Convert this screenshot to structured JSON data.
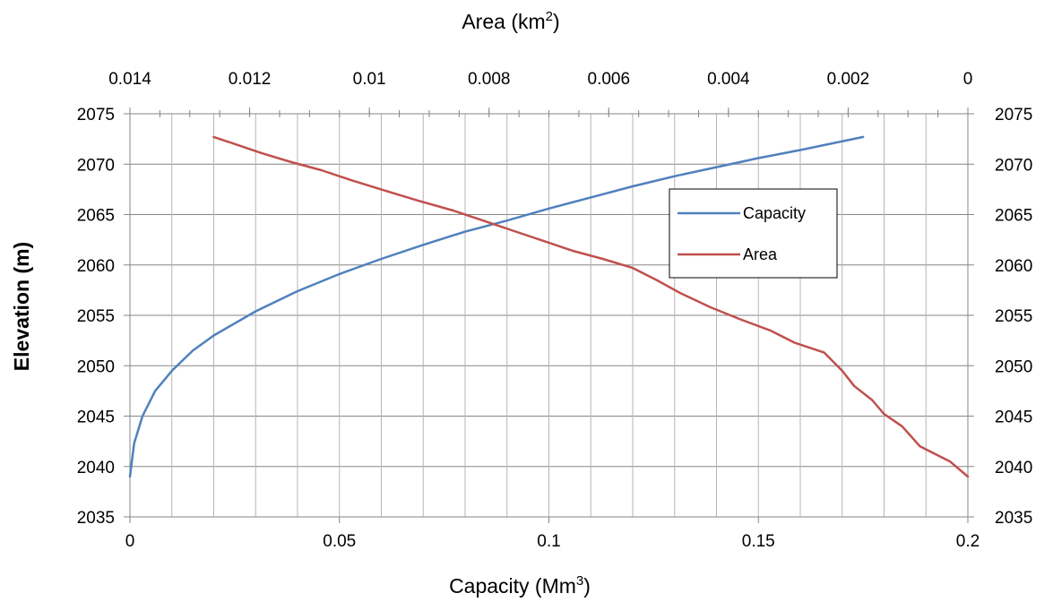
{
  "chart_data": {
    "type": "line",
    "title": "",
    "x_bottom": {
      "label": "Capacity (Mm",
      "label_sup": "3",
      "label_end": ")",
      "range": [
        0,
        0.2
      ],
      "ticks": [
        0,
        0.05,
        0.1,
        0.15,
        0.2
      ],
      "tick_labels": [
        "0",
        "0.05",
        "0.1",
        "0.15",
        "0.2"
      ],
      "minor_step": 0.01
    },
    "x_top": {
      "label": "Area (km",
      "label_sup": "2",
      "label_end": ")",
      "range": [
        0.014,
        0
      ],
      "reversed": true,
      "ticks": [
        0.014,
        0.012,
        0.01,
        0.008,
        0.006,
        0.004,
        0.002,
        0
      ],
      "tick_labels": [
        "0.014",
        "0.012",
        "0.01",
        "0.008",
        "0.006",
        "0.004",
        "0.002",
        "0"
      ],
      "minor_step": 0.0005
    },
    "y_left": {
      "label": "Elevation (m)",
      "range": [
        2035,
        2075
      ],
      "ticks": [
        2035,
        2040,
        2045,
        2050,
        2055,
        2060,
        2065,
        2070,
        2075
      ],
      "tick_labels": [
        "2035",
        "2040",
        "2045",
        "2050",
        "2055",
        "2060",
        "2065",
        "2070",
        "2075"
      ]
    },
    "y_right": {
      "ticks": [
        2035,
        2040,
        2045,
        2050,
        2055,
        2060,
        2065,
        2070,
        2075
      ],
      "tick_labels": [
        "2035",
        "2040",
        "2045",
        "2050",
        "2055",
        "2060",
        "2065",
        "2070",
        "2075"
      ]
    },
    "grid": true,
    "legend_position": "right",
    "series": [
      {
        "name": "Capacity",
        "axis": "bottom",
        "color": "#4F81BD",
        "x": [
          0,
          0.001,
          0.003,
          0.006,
          0.01,
          0.015,
          0.02,
          0.03,
          0.04,
          0.05,
          0.06,
          0.07,
          0.08,
          0.09,
          0.1,
          0.11,
          0.12,
          0.13,
          0.14,
          0.15,
          0.16,
          0.175
        ],
        "y": [
          2039,
          2042.3,
          2045,
          2047.5,
          2049.5,
          2051.5,
          2053,
          2055.4,
          2057.4,
          2059.1,
          2060.6,
          2062,
          2063.3,
          2064.4,
          2065.6,
          2066.7,
          2067.8,
          2068.8,
          2069.7,
          2070.6,
          2071.4,
          2072.7
        ]
      },
      {
        "name": "Area",
        "axis": "top",
        "color": "#C0504D",
        "x": [
          0,
          0.0003,
          0.0008,
          0.0011,
          0.0014,
          0.0016,
          0.0019,
          0.0021,
          0.0024,
          0.0029,
          0.0033,
          0.0038,
          0.0043,
          0.0048,
          0.0052,
          0.0056,
          0.0061,
          0.0066,
          0.0071,
          0.0076,
          0.0081,
          0.0086,
          0.0092,
          0.0097,
          0.0103,
          0.0108,
          0.0113,
          0.0118,
          0.0123,
          0.0126
        ],
        "y": [
          2039,
          2040.5,
          2042,
          2044,
          2045.2,
          2046.6,
          2048,
          2049.5,
          2051.3,
          2052.3,
          2053.5,
          2054.6,
          2055.8,
          2057.2,
          2058.5,
          2059.7,
          2060.6,
          2061.4,
          2062.4,
          2063.4,
          2064.4,
          2065.4,
          2066.4,
          2067.3,
          2068.4,
          2069.4,
          2070.2,
          2071.1,
          2072.1,
          2072.7
        ]
      }
    ]
  }
}
